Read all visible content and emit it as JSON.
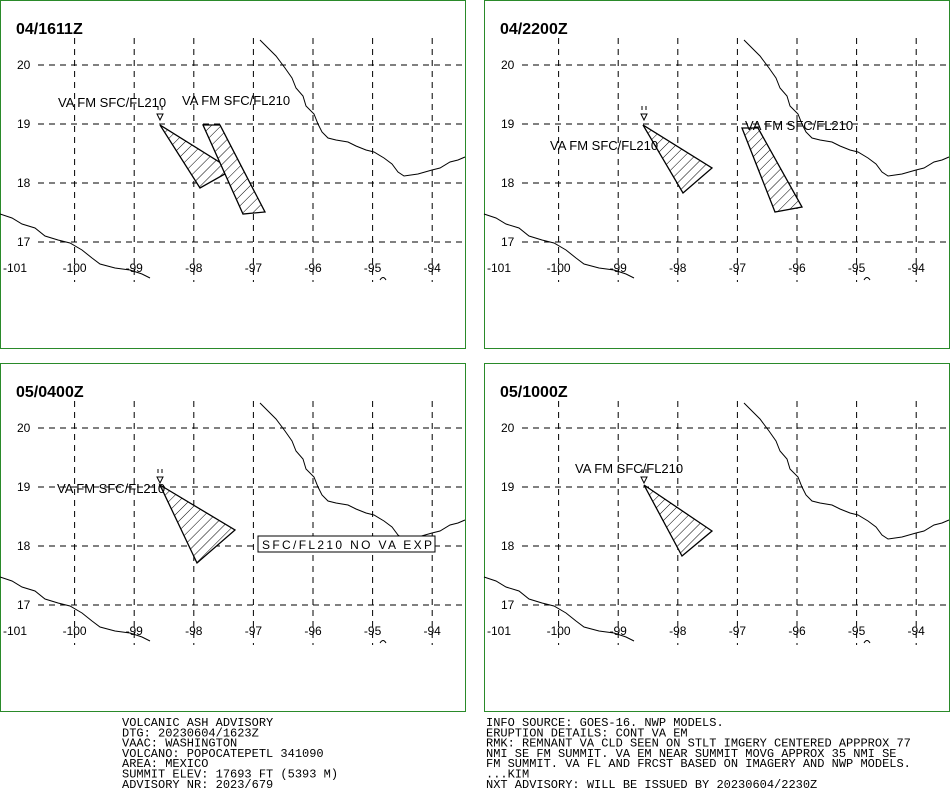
{
  "panels": [
    {
      "time": "04/1611Z",
      "labels": [
        "VA FM SFC/FL210",
        "VA FM SFC/FL210"
      ]
    },
    {
      "time": "04/2200Z",
      "labels": [
        "VA FM SFC/FL210",
        "VA FM SFC/FL210"
      ]
    },
    {
      "time": "05/0400Z",
      "labels": [
        "VA FM SFC/FL210"
      ],
      "box_label": "SFC/FL210 NO VA EXP"
    },
    {
      "time": "05/1000Z",
      "labels": [
        "VA FM SFC/FL210"
      ]
    }
  ],
  "lat_labels": [
    "20",
    "19",
    "18",
    "17"
  ],
  "lon_labels": [
    "-101",
    "-100",
    "-99",
    "-98",
    "-97",
    "-96",
    "-95",
    "-94"
  ],
  "advisory_left": [
    "VOLCANIC ASH ADVISORY",
    "DTG: 20230604/1623Z",
    "VAAC: WASHINGTON",
    "VOLCANO: POPOCATEPETL 341090",
    "AREA: MEXICO",
    "SUMMIT ELEV: 17693 FT (5393 M)",
    "ADVISORY NR: 2023/679"
  ],
  "advisory_right": [
    "INFO SOURCE: GOES-16. NWP MODELS.",
    "ERUPTION DETAILS: CONT VA EM",
    "RMK: REMNANT VA CLD SEEN ON STLT IMGERY CENTERED APPPROX 77",
    "NMI SE FM SUMMIT. VA EM NEAR SUMMIT MOVG APPROX 35 NMI SE",
    "FM SUMMIT. VA FL AND FRCST BASED ON IMAGERY AND NWP MODELS.",
    "...KIM",
    "NXT ADVISORY: WILL BE ISSUED BY 20230604/2230Z"
  ]
}
